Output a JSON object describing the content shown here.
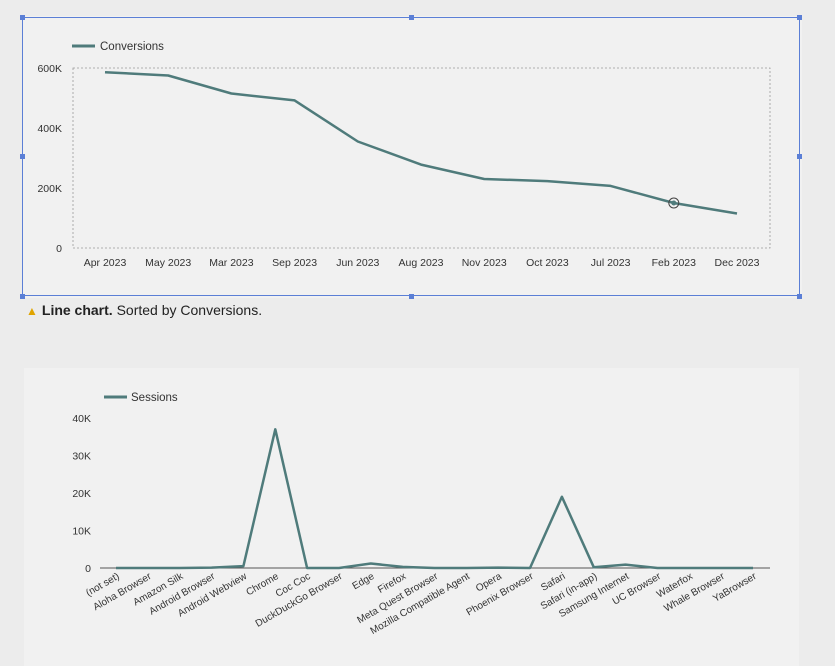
{
  "caption": {
    "bold": "Line chart.",
    "rest": "Sorted by Conversions."
  },
  "colors": {
    "line": "#4f7b7b",
    "selection": "#5b7fd6",
    "grid": "#9a9a9a",
    "warning": "#e0a400"
  },
  "chart_data": [
    {
      "type": "line",
      "legend": "Conversions",
      "legend_position": "top-left",
      "categories": [
        "Apr 2023",
        "May 2023",
        "Mar 2023",
        "Sep 2023",
        "Jun 2023",
        "Aug 2023",
        "Nov 2023",
        "Oct 2023",
        "Jul 2023",
        "Feb 2023",
        "Dec 2023"
      ],
      "values": [
        586000,
        575000,
        515000,
        492000,
        355000,
        278000,
        230000,
        223000,
        207000,
        150000,
        115000
      ],
      "ylim": [
        0,
        600000
      ],
      "yticks": [
        0,
        200000,
        400000,
        600000
      ],
      "ytick_labels": [
        "0",
        "200K",
        "400K",
        "600K"
      ]
    },
    {
      "type": "line",
      "legend": "Sessions",
      "legend_position": "top-left",
      "categories": [
        "(not set)",
        "Aloha Browser",
        "Amazon Silk",
        "Android Browser",
        "Android Webview",
        "Chrome",
        "Coc Coc",
        "DuckDuckGo Browser",
        "Edge",
        "Firefox",
        "Meta Quest Browser",
        "Mozilla Compatible Agent",
        "Opera",
        "Phoenix Browser",
        "Safari",
        "Safari (in-app)",
        "Samsung Internet",
        "UC Browser",
        "Waterfox",
        "Whale Browser",
        "YaBrowser"
      ],
      "values": [
        0,
        0,
        0,
        100,
        500,
        37000,
        0,
        0,
        1200,
        300,
        0,
        0,
        100,
        0,
        19000,
        200,
        900,
        0,
        0,
        0,
        0
      ],
      "ylim": [
        0,
        40000
      ],
      "yticks": [
        0,
        10000,
        20000,
        30000,
        40000
      ],
      "ytick_labels": [
        "0",
        "10K",
        "20K",
        "30K",
        "40K"
      ]
    }
  ]
}
